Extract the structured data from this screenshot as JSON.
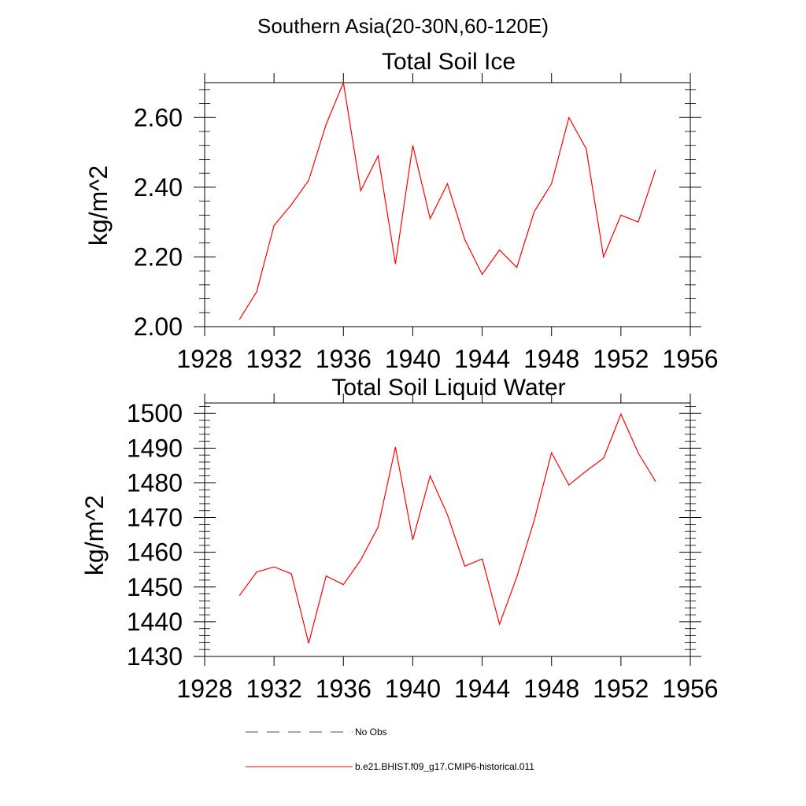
{
  "page": {
    "title": "Southern Asia(20-30N,60-120E)"
  },
  "colors": {
    "series": "#ff0000",
    "noobs": "#4a4f7a",
    "axis": "#000000"
  },
  "legend": {
    "no_obs": "No Obs",
    "model": "b.e21.BHIST.f09_g17.CMIP6-historical.011"
  },
  "chart_data": [
    {
      "type": "line",
      "title": "Total Soil Ice",
      "xlabel": "",
      "ylabel": "kg/m^2",
      "xlim": [
        1928,
        1956
      ],
      "ylim": [
        2.0,
        2.7
      ],
      "x_ticks": [
        1928,
        1932,
        1936,
        1940,
        1944,
        1948,
        1952,
        1956
      ],
      "x_tick_labels": [
        "1928",
        "1932",
        "1936",
        "1940",
        "1944",
        "1948",
        "1952",
        "1956"
      ],
      "y_ticks": [
        2.0,
        2.2,
        2.4,
        2.6
      ],
      "y_tick_labels": [
        "2.00",
        "2.20",
        "2.40",
        "2.60"
      ],
      "grid": false,
      "series": [
        {
          "name": "b.e21.BHIST.f09_g17.CMIP6-historical.011",
          "x": [
            1930,
            1931,
            1932,
            1933,
            1934,
            1935,
            1936,
            1937,
            1938,
            1939,
            1940,
            1941,
            1942,
            1943,
            1944,
            1945,
            1946,
            1947,
            1948,
            1949,
            1950,
            1951,
            1952,
            1953,
            1954
          ],
          "values": [
            2.02,
            2.1,
            2.29,
            2.35,
            2.42,
            2.58,
            2.7,
            2.39,
            2.49,
            2.18,
            2.52,
            2.31,
            2.41,
            2.25,
            2.15,
            2.22,
            2.17,
            2.33,
            2.41,
            2.6,
            2.51,
            2.2,
            2.32,
            2.3,
            2.45
          ]
        }
      ]
    },
    {
      "type": "line",
      "title": "Total Soil Liquid Water",
      "xlabel": "",
      "ylabel": "kg/m^2",
      "xlim": [
        1928,
        1956
      ],
      "ylim": [
        1430,
        1503
      ],
      "x_ticks": [
        1928,
        1932,
        1936,
        1940,
        1944,
        1948,
        1952,
        1956
      ],
      "x_tick_labels": [
        "1928",
        "1932",
        "1936",
        "1940",
        "1944",
        "1948",
        "1952",
        "1956"
      ],
      "y_ticks": [
        1430,
        1440,
        1450,
        1460,
        1470,
        1480,
        1490,
        1500
      ],
      "y_tick_labels": [
        "1430",
        "1440",
        "1450",
        "1460",
        "1470",
        "1480",
        "1490",
        "1500"
      ],
      "grid": false,
      "series": [
        {
          "name": "b.e21.BHIST.f09_g17.CMIP6-historical.011",
          "x": [
            1930,
            1931,
            1932,
            1933,
            1934,
            1935,
            1936,
            1937,
            1938,
            1939,
            1940,
            1941,
            1942,
            1943,
            1944,
            1945,
            1946,
            1947,
            1948,
            1949,
            1950,
            1951,
            1952,
            1953,
            1954
          ],
          "values": [
            1447.5,
            1454.3,
            1455.8,
            1453.8,
            1433.8,
            1453.2,
            1450.7,
            1457.8,
            1467.3,
            1490.3,
            1463.6,
            1482.0,
            1470.8,
            1456.0,
            1458.1,
            1439.3,
            1452.9,
            1469.2,
            1488.7,
            1479.4,
            1483.4,
            1487.1,
            1499.8,
            1488.6,
            1480.4
          ]
        }
      ]
    }
  ]
}
